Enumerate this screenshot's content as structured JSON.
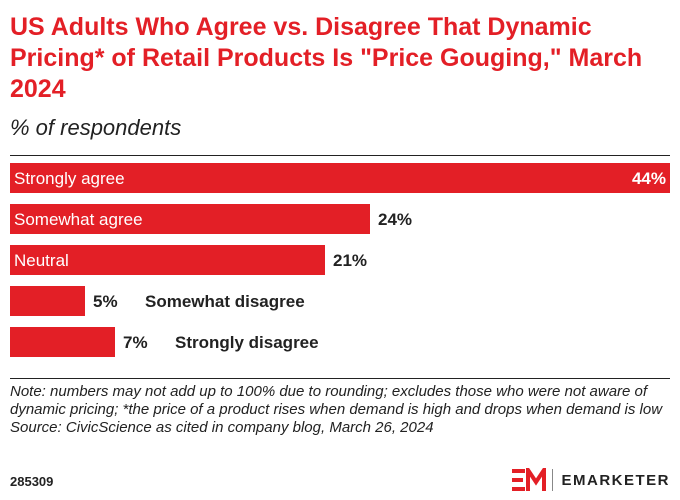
{
  "chart_data": {
    "type": "bar",
    "orientation": "horizontal",
    "title": "US Adults Who Agree vs. Disagree That Dynamic Pricing* of Retail Products Is \"Price Gouging,\" March 2024",
    "subtitle": "% of respondents",
    "categories": [
      "Strongly agree",
      "Somewhat agree",
      "Neutral",
      "Somewhat disagree",
      "Strongly disagree"
    ],
    "values": [
      44,
      24,
      21,
      5,
      7
    ],
    "value_labels": [
      "44%",
      "24%",
      "21%",
      "5%",
      "7%"
    ],
    "unit": "%",
    "xlim": [
      0,
      44
    ],
    "bar_color": "#e31f26",
    "grid": false,
    "legend": "none"
  },
  "footer": {
    "note": "Note: numbers may not add up to 100% due to rounding; excludes those who were not aware of dynamic pricing; *the price of a product rises when demand is high and drops when demand is low",
    "source": "Source: CivicScience as cited in company blog, March 26, 2024",
    "chart_id": "285309",
    "brand": "EMARKETER"
  },
  "colors": {
    "accent": "#e31f26",
    "text": "#222222"
  }
}
